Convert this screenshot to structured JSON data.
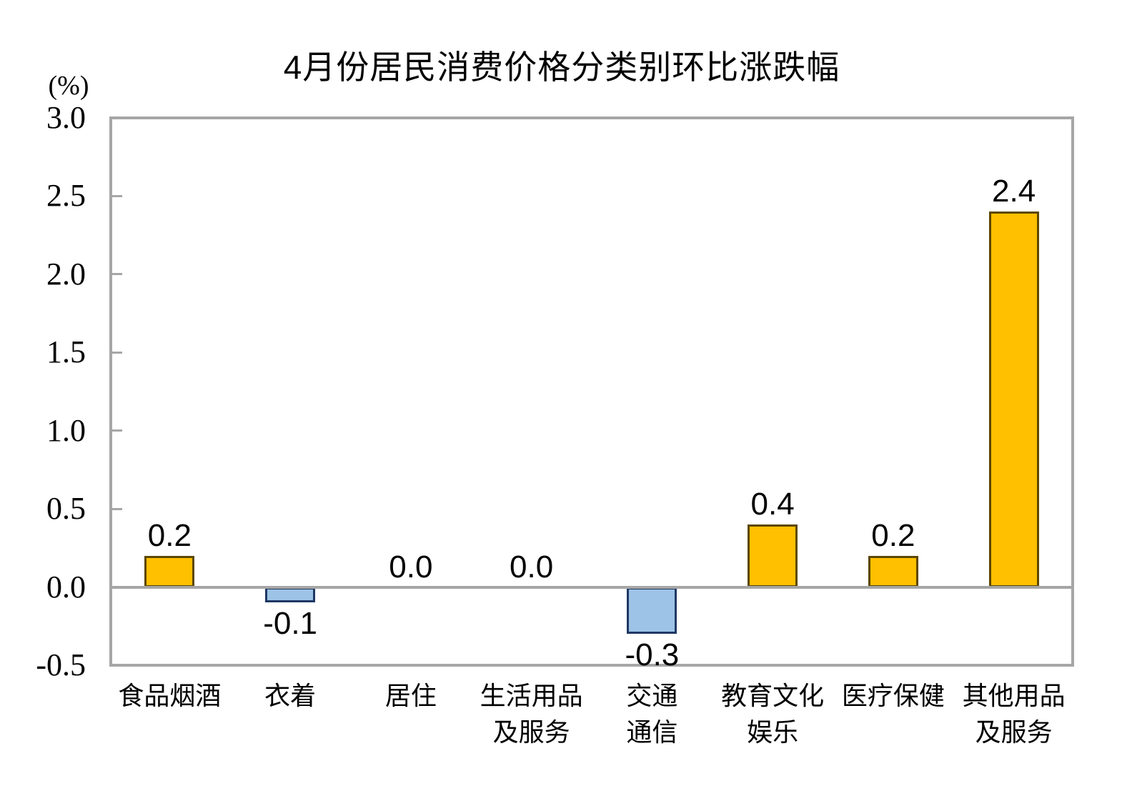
{
  "chart_data": {
    "type": "bar",
    "title": "4月份居民消费价格分类别环比涨跌幅",
    "unit": "(%)",
    "xlabel": "",
    "ylabel": "(%)",
    "categories": [
      "食品烟酒",
      "衣着",
      "居住",
      "生活用品及服务",
      "交通通信",
      "教育文化娱乐",
      "医疗保健",
      "其他用品及服务"
    ],
    "category_lines": [
      [
        "食品烟酒"
      ],
      [
        "衣着"
      ],
      [
        "居住"
      ],
      [
        "生活用品",
        "及服务"
      ],
      [
        "交通",
        "通信"
      ],
      [
        "教育文化",
        "娱乐"
      ],
      [
        "医疗保健"
      ],
      [
        "其他用品",
        "及服务"
      ]
    ],
    "values": [
      0.2,
      -0.1,
      0.0,
      0.0,
      -0.3,
      0.4,
      0.2,
      2.4
    ],
    "data_labels": [
      "0.2",
      "-0.1",
      "0.0",
      "0.0",
      "-0.3",
      "0.4",
      "0.2",
      "2.4"
    ],
    "y_ticks": [
      3.0,
      2.5,
      2.0,
      1.5,
      1.0,
      0.5,
      0.0,
      -0.5
    ],
    "y_tick_labels": [
      "3.0",
      "2.5",
      "2.0",
      "1.5",
      "1.0",
      "0.5",
      "0.0",
      "-0.5"
    ],
    "ylim": [
      -0.5,
      3.0
    ],
    "grid": false,
    "legend": false,
    "colors": {
      "positive_fill": "#FFC000",
      "positive_border": "#5C4700",
      "negative_fill": "#9DC3E6",
      "negative_border": "#1F3864",
      "axis": "#A6A6A6",
      "text": "#000000"
    }
  }
}
